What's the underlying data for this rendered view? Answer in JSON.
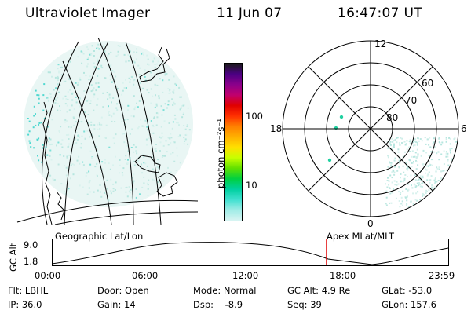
{
  "header": {
    "title": "Ultraviolet Imager",
    "date": "11 Jun 07",
    "time": "16:47:07 UT"
  },
  "colorbar": {
    "unit_label": "photon cm⁻²s⁻¹",
    "ticks": [
      "100",
      "10"
    ],
    "scale": "log",
    "colors": [
      "#1a1a1a",
      "#4b0082",
      "#8b008b",
      "#c0006e",
      "#e00000",
      "#ff3000",
      "#ff8000",
      "#ffb000",
      "#ffe000",
      "#c8ff00",
      "#60e000",
      "#00d040",
      "#00d0a0",
      "#40e0d0",
      "#a0ece6",
      "#d8f4f2"
    ]
  },
  "polar_plot": {
    "mlt_labels": {
      "top": "12",
      "left": "18",
      "right": "6",
      "bottom": "0"
    },
    "lat_labels": [
      "60",
      "70",
      "80"
    ]
  },
  "timeline": {
    "left_label": "Geographic Lat/Lon",
    "right_label": "Apex MLat/MLT",
    "axis_title": "GC Alt",
    "y_max": "9.0",
    "y_min": "1.8",
    "time_ticks": [
      "00:00",
      "06:00",
      "12:00",
      "18:00",
      "23:59"
    ],
    "marker_color": "#e00000"
  },
  "params": {
    "flt": "Flt: LBHL",
    "ip": "IP: 36.0",
    "door": "Door: Open",
    "gain": "Gain: 14",
    "mode": "Mode: Normal",
    "dsp": "Dsp:    -8.9",
    "gcalt": "GC Alt: 4.9 Re",
    "seq": "Seq: 39",
    "glat": "GLat: -53.0",
    "glon": "GLon: 157.6"
  }
}
